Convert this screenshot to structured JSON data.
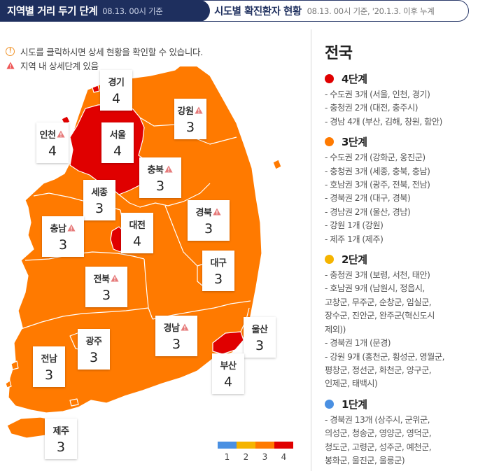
{
  "tabs": {
    "active": {
      "title": "지역별 거리 두기 단계",
      "subtitle": "08.13. 00시 기준"
    },
    "inactive": {
      "title": "시도별 확진환자 현황",
      "subtitle": "08.13. 00시 기준, '20.1.3. 이후 누계"
    }
  },
  "notes": {
    "click_hint": "시도를 클릭하시면 상세 현황을 확인할 수 있습니다.",
    "warning_hint": "지역 내 상세단계 있음"
  },
  "colors": {
    "level1": "#4a90e2",
    "level2": "#f5b400",
    "level3": "#ff7a00",
    "level4": "#e00000"
  },
  "regions": [
    {
      "id": "gyeonggi",
      "name": "경기",
      "level": "4",
      "warning": false
    },
    {
      "id": "gangwon",
      "name": "강원",
      "level": "3",
      "warning": true
    },
    {
      "id": "incheon",
      "name": "인천",
      "level": "4",
      "warning": true
    },
    {
      "id": "seoul",
      "name": "서울",
      "level": "4",
      "warning": false
    },
    {
      "id": "chungbuk",
      "name": "충북",
      "level": "3",
      "warning": true
    },
    {
      "id": "sejong",
      "name": "세종",
      "level": "3",
      "warning": false
    },
    {
      "id": "gyeongbuk",
      "name": "경북",
      "level": "3",
      "warning": true
    },
    {
      "id": "chungnam",
      "name": "충남",
      "level": "3",
      "warning": true
    },
    {
      "id": "daejeon",
      "name": "대전",
      "level": "4",
      "warning": false
    },
    {
      "id": "daegu",
      "name": "대구",
      "level": "3",
      "warning": false
    },
    {
      "id": "jeonbuk",
      "name": "전북",
      "level": "3",
      "warning": true
    },
    {
      "id": "ulsan",
      "name": "울산",
      "level": "3",
      "warning": false
    },
    {
      "id": "gyeongnam",
      "name": "경남",
      "level": "3",
      "warning": true
    },
    {
      "id": "gwangju",
      "name": "광주",
      "level": "3",
      "warning": false
    },
    {
      "id": "jeonnam",
      "name": "전남",
      "level": "3",
      "warning": false
    },
    {
      "id": "busan",
      "name": "부산",
      "level": "4",
      "warning": false
    },
    {
      "id": "jeju",
      "name": "제주",
      "level": "3",
      "warning": false
    }
  ],
  "legend": [
    "1",
    "2",
    "3",
    "4"
  ],
  "panel": {
    "title": "전국",
    "levels": [
      {
        "label": "4단계",
        "color": "#e00000",
        "items": [
          "- 수도권 3개 (서울, 인천, 경기)",
          "- 충청권 2개 (대전, 충주시)",
          "- 경남 4개 (부산, 김해, 창원, 함안)"
        ]
      },
      {
        "label": "3단계",
        "color": "#ff7a00",
        "items": [
          "- 수도권 2개 (강화군, 옹진군)",
          "- 충청권 3개 (세종, 충북, 충남)",
          "- 호남권 3개 (광주, 전북, 전남)",
          "- 경북권 2개 (대구, 경북)",
          "- 경남권 2개 (울산, 경남)",
          "- 강원 1개 (강원)",
          "- 제주 1개 (제주)"
        ]
      },
      {
        "label": "2단계",
        "color": "#f5b400",
        "items": [
          "- 충청권 3개 (보령, 서천, 태안)",
          "- 호남권 9개 (남원시, 정읍시,",
          "고창군, 무주군, 순창군, 임실군,",
          "장수군, 진안군, 완주군(혁신도시",
          "제외))",
          "- 경북권 1개 (문경)",
          "- 강원 9개 (홍천군, 횡성군, 영월군,",
          "평창군, 정선군, 화천군, 양구군,",
          "인제군, 태백시)"
        ]
      },
      {
        "label": "1단계",
        "color": "#4a90e2",
        "items": [
          "- 경북권 13개 (상주시, 군위군,",
          "의성군, 청송군, 영양군, 영덕군,",
          "청도군, 고령군, 성주군, 예천군,",
          "봉화군, 울진군, 울릉군)"
        ]
      }
    ]
  }
}
